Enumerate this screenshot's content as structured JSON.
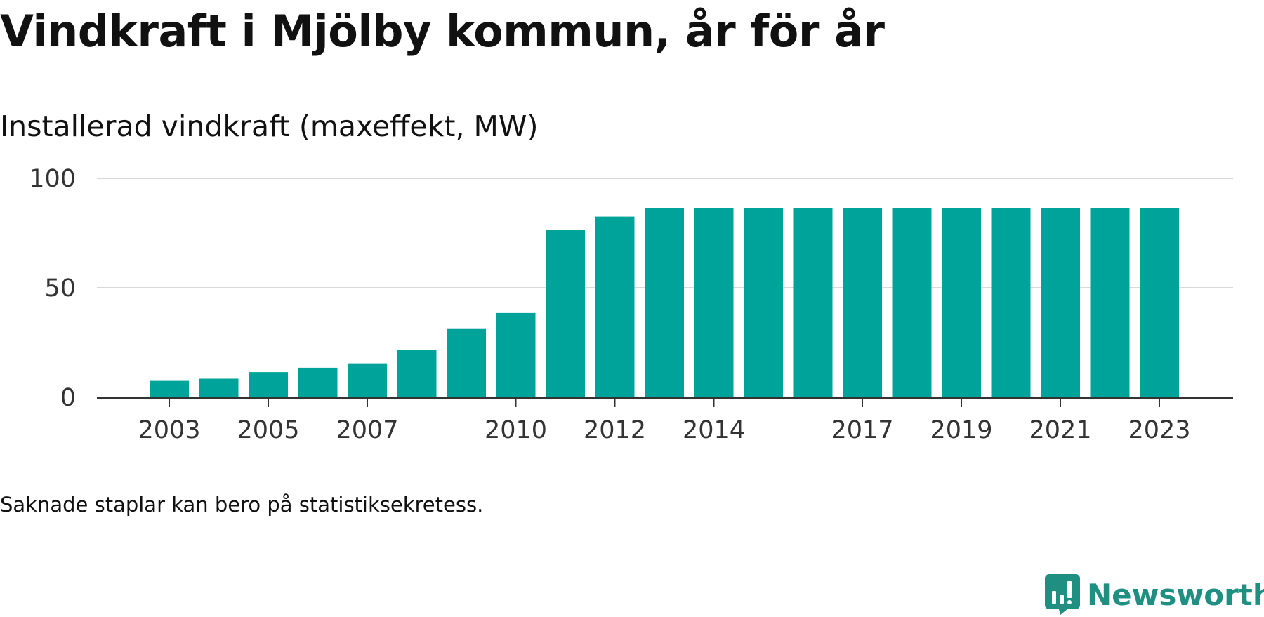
{
  "header": {
    "title": "Vindkraft i Mjölby kommun, år för år",
    "subtitle": "Installerad vindkraft (maxeffekt, MW)"
  },
  "footer": {
    "note": "Saknade staplar kan bero på statistiksekretess.",
    "brand": "Newsworthy"
  },
  "colors": {
    "bar": "#00a39a",
    "grid": "#d9d9d9",
    "axis": "#333333",
    "brand": "#1f8f82"
  },
  "chart_data": {
    "type": "bar",
    "title": "Vindkraft i Mjölby kommun, år för år",
    "subtitle": "Installerad vindkraft (maxeffekt, MW)",
    "xlabel": "",
    "ylabel": "",
    "categories": [
      "2003",
      "2004",
      "2005",
      "2006",
      "2007",
      "2008",
      "2009",
      "2010",
      "2011",
      "2012",
      "2013",
      "2014",
      "2015",
      "2016",
      "2017",
      "2018",
      "2019",
      "2020",
      "2021",
      "2022",
      "2023"
    ],
    "values": [
      7.5,
      8.5,
      11.5,
      13.5,
      15.5,
      21.5,
      31.5,
      38.5,
      76.5,
      82.5,
      86.5,
      86.5,
      86.5,
      86.5,
      86.5,
      86.5,
      86.5,
      86.5,
      86.5,
      86.5,
      86.5
    ],
    "x_tick_labels": [
      "2003",
      "2005",
      "2007",
      "2010",
      "2012",
      "2014",
      "2017",
      "2019",
      "2021",
      "2023"
    ],
    "y_tick_labels": [
      "0",
      "50",
      "100"
    ],
    "ylim": [
      0,
      100
    ],
    "grid": true,
    "legend": "none"
  }
}
